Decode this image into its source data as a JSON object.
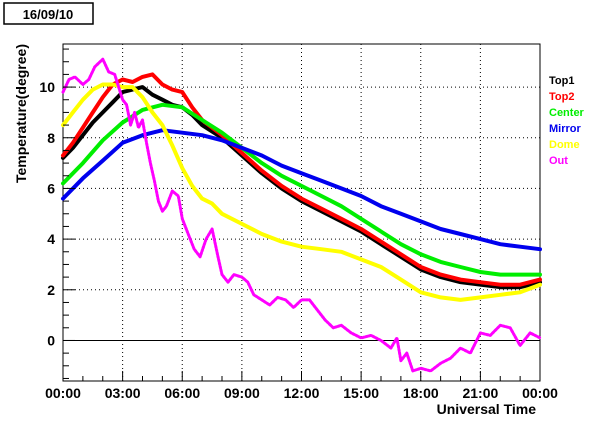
{
  "date_label": "16/09/10",
  "chart_data": {
    "type": "line",
    "title": "",
    "xlabel": "Universal Time",
    "ylabel": "Temperature(degree)",
    "xlim": [
      0,
      24
    ],
    "ylim": [
      -1.6,
      11.7
    ],
    "x_ticks": [
      {
        "value": 0,
        "label": "00:00"
      },
      {
        "value": 3,
        "label": "03:00"
      },
      {
        "value": 6,
        "label": "06:00"
      },
      {
        "value": 9,
        "label": "09:00"
      },
      {
        "value": 12,
        "label": "12:00"
      },
      {
        "value": 15,
        "label": "15:00"
      },
      {
        "value": 18,
        "label": "18:00"
      },
      {
        "value": 21,
        "label": "21:00"
      },
      {
        "value": 24,
        "label": "00:00"
      }
    ],
    "y_ticks": [
      {
        "value": 0,
        "label": "0"
      },
      {
        "value": 2,
        "label": "2"
      },
      {
        "value": 4,
        "label": "4"
      },
      {
        "value": 6,
        "label": "6"
      },
      {
        "value": 8,
        "label": "8"
      },
      {
        "value": 10,
        "label": "10"
      }
    ],
    "grid": true,
    "legend_position": "right",
    "series": [
      {
        "name": "Top1",
        "color": "#000000",
        "x": [
          0,
          0.5,
          1,
          1.5,
          2,
          2.5,
          3,
          3.5,
          4,
          4.5,
          5,
          5.5,
          6,
          6.5,
          7,
          8,
          9,
          10,
          11,
          12,
          13,
          14,
          15,
          16,
          17,
          18,
          19,
          20,
          21,
          22,
          23,
          24
        ],
        "y": [
          7.2,
          7.6,
          8.1,
          8.6,
          9.0,
          9.4,
          9.8,
          9.9,
          10.0,
          9.7,
          9.5,
          9.3,
          9.2,
          8.9,
          8.5,
          8.0,
          7.3,
          6.6,
          6.0,
          5.5,
          5.1,
          4.7,
          4.3,
          3.8,
          3.3,
          2.8,
          2.5,
          2.3,
          2.2,
          2.1,
          2.1,
          2.3
        ]
      },
      {
        "name": "Top2",
        "color": "#ff0000",
        "x": [
          0,
          0.5,
          1,
          1.5,
          2,
          2.5,
          3,
          3.5,
          4,
          4.5,
          5,
          5.5,
          6,
          6.5,
          7,
          8,
          9,
          10,
          11,
          12,
          13,
          14,
          15,
          16,
          17,
          18,
          19,
          20,
          21,
          22,
          23,
          24
        ],
        "y": [
          7.3,
          7.8,
          8.4,
          9.0,
          9.6,
          10.1,
          10.3,
          10.2,
          10.4,
          10.5,
          10.1,
          9.9,
          9.8,
          9.2,
          8.7,
          8.1,
          7.4,
          6.7,
          6.1,
          5.6,
          5.2,
          4.8,
          4.4,
          3.9,
          3.4,
          2.9,
          2.6,
          2.4,
          2.3,
          2.2,
          2.2,
          2.4
        ]
      },
      {
        "name": "Center",
        "color": "#00ee00",
        "x": [
          0,
          1,
          2,
          3,
          4,
          5,
          6,
          7,
          8,
          9,
          10,
          11,
          12,
          13,
          14,
          15,
          16,
          17,
          18,
          19,
          20,
          21,
          22,
          23,
          24
        ],
        "y": [
          6.2,
          7.0,
          7.9,
          8.6,
          9.1,
          9.3,
          9.2,
          8.7,
          8.2,
          7.6,
          7.0,
          6.5,
          6.1,
          5.7,
          5.3,
          4.8,
          4.3,
          3.8,
          3.4,
          3.1,
          2.9,
          2.7,
          2.6,
          2.6,
          2.6
        ]
      },
      {
        "name": "Mirror",
        "color": "#0000ee",
        "x": [
          0,
          1,
          2,
          3,
          4,
          5,
          6,
          7,
          8,
          9,
          10,
          11,
          12,
          13,
          14,
          15,
          16,
          17,
          18,
          19,
          20,
          21,
          22,
          23,
          24
        ],
        "y": [
          5.6,
          6.4,
          7.1,
          7.8,
          8.1,
          8.3,
          8.2,
          8.1,
          7.9,
          7.6,
          7.3,
          6.9,
          6.6,
          6.3,
          6.0,
          5.7,
          5.3,
          5.0,
          4.7,
          4.4,
          4.2,
          4.0,
          3.8,
          3.7,
          3.6
        ]
      },
      {
        "name": "Dome",
        "color": "#ffff00",
        "x": [
          0,
          0.5,
          1,
          1.5,
          2,
          2.5,
          3,
          3.5,
          4,
          4.5,
          5,
          5.5,
          6,
          6.5,
          7,
          7.5,
          8,
          9,
          10,
          11,
          12,
          13,
          14,
          15,
          16,
          17,
          18,
          19,
          20,
          21,
          22,
          23,
          24
        ],
        "y": [
          8.5,
          9.0,
          9.5,
          9.9,
          10.1,
          10.1,
          10.0,
          10.0,
          9.6,
          9.0,
          8.5,
          7.7,
          6.8,
          6.1,
          5.6,
          5.4,
          5.0,
          4.6,
          4.2,
          3.9,
          3.7,
          3.6,
          3.5,
          3.2,
          2.9,
          2.4,
          1.9,
          1.7,
          1.6,
          1.7,
          1.8,
          1.9,
          2.2
        ]
      },
      {
        "name": "Out",
        "color": "#ff00ff",
        "x": [
          0,
          0.3,
          0.6,
          1,
          1.3,
          1.6,
          2,
          2.3,
          2.6,
          3,
          3.2,
          3.4,
          3.6,
          3.8,
          4,
          4.2,
          4.4,
          4.6,
          4.8,
          5,
          5.2,
          5.5,
          5.8,
          6,
          6.3,
          6.6,
          6.9,
          7.2,
          7.5,
          7.8,
          8,
          8.3,
          8.6,
          9,
          9.3,
          9.6,
          10,
          10.4,
          10.8,
          11.2,
          11.6,
          12,
          12.4,
          12.8,
          13.2,
          13.6,
          14,
          14.5,
          15,
          15.5,
          16,
          16.5,
          16.8,
          17,
          17.3,
          17.6,
          18,
          18.5,
          19,
          19.5,
          20,
          20.5,
          21,
          21.5,
          22,
          22.5,
          23,
          23.5,
          24
        ],
        "y": [
          9.8,
          10.3,
          10.4,
          10.1,
          10.3,
          10.8,
          11.1,
          10.6,
          10.5,
          9.5,
          9.3,
          8.5,
          9.0,
          8.4,
          8.7,
          7.8,
          7.0,
          6.3,
          5.5,
          5.1,
          5.3,
          5.9,
          5.7,
          4.8,
          4.2,
          3.6,
          3.3,
          4.0,
          4.4,
          3.3,
          2.6,
          2.3,
          2.6,
          2.5,
          2.3,
          1.8,
          1.6,
          1.4,
          1.7,
          1.6,
          1.3,
          1.6,
          1.6,
          1.2,
          0.8,
          0.5,
          0.6,
          0.3,
          0.1,
          0.2,
          0.0,
          -0.3,
          0.1,
          -0.8,
          -0.5,
          -1.2,
          -1.1,
          -1.2,
          -0.9,
          -0.7,
          -0.3,
          -0.5,
          0.3,
          0.2,
          0.6,
          0.5,
          -0.2,
          0.3,
          0.1
        ]
      }
    ]
  }
}
